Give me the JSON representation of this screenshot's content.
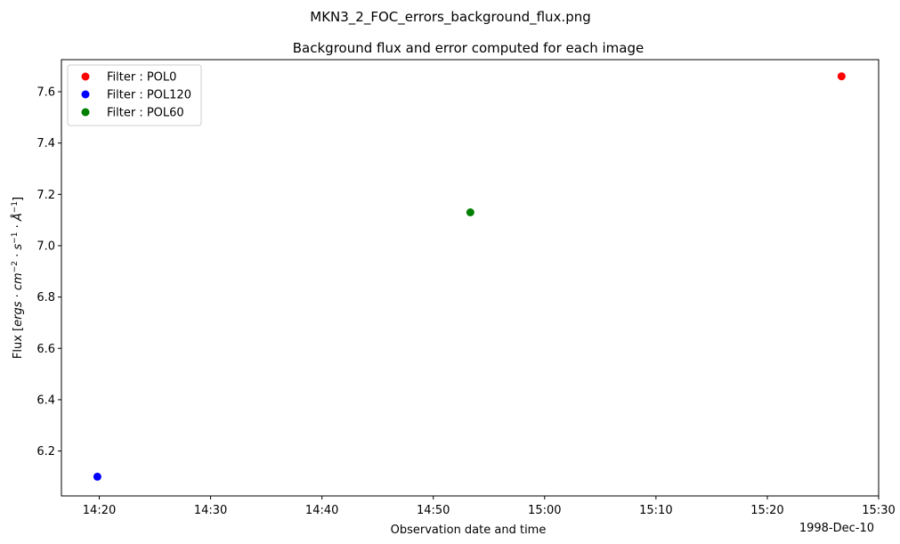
{
  "figure": {
    "suptitle": "MKN3_2_FOC_errors_background_flux.png"
  },
  "chart_data": {
    "type": "scatter",
    "title": "Background flux and error computed for each image",
    "xlabel": "Observation date and time",
    "ylabel_prefix": "Flux [",
    "ylabel_math": [
      "ergs",
      "·",
      "cm",
      "−2",
      "·",
      "s",
      "−1",
      "·",
      "Å",
      "−1"
    ],
    "ylabel_suffix": "]",
    "x_offset_label": "1998-Dec-10",
    "x_tick_labels": [
      "14:20",
      "14:30",
      "14:40",
      "14:50",
      "15:00",
      "15:10",
      "15:20",
      "15:30"
    ],
    "x_ticks_minutes": [
      20,
      30,
      40,
      50,
      60,
      70,
      80,
      90
    ],
    "y_ticks": [
      6.2,
      6.4,
      6.6,
      6.8,
      7.0,
      7.2,
      7.4,
      7.6
    ],
    "y_tick_labels": [
      "6.2",
      "6.4",
      "6.6",
      "6.8",
      "7.0",
      "7.2",
      "7.4",
      "7.6"
    ],
    "xlim_minutes": [
      16.6,
      90.0
    ],
    "ylim": [
      6.025,
      7.725
    ],
    "grid": false,
    "legend_position": "upper left",
    "series": [
      {
        "name": "Filter : POL0",
        "color": "#ff0000",
        "points": [
          {
            "x": "15:26:40",
            "x_minutes": 86.67,
            "y": 7.66
          }
        ]
      },
      {
        "name": "Filter : POL120",
        "color": "#0000ff",
        "points": [
          {
            "x": "14:19:50",
            "x_minutes": 19.83,
            "y": 6.1
          }
        ]
      },
      {
        "name": "Filter : POL60",
        "color": "#008000",
        "points": [
          {
            "x": "14:53:20",
            "x_minutes": 53.33,
            "y": 7.13
          }
        ]
      }
    ]
  }
}
